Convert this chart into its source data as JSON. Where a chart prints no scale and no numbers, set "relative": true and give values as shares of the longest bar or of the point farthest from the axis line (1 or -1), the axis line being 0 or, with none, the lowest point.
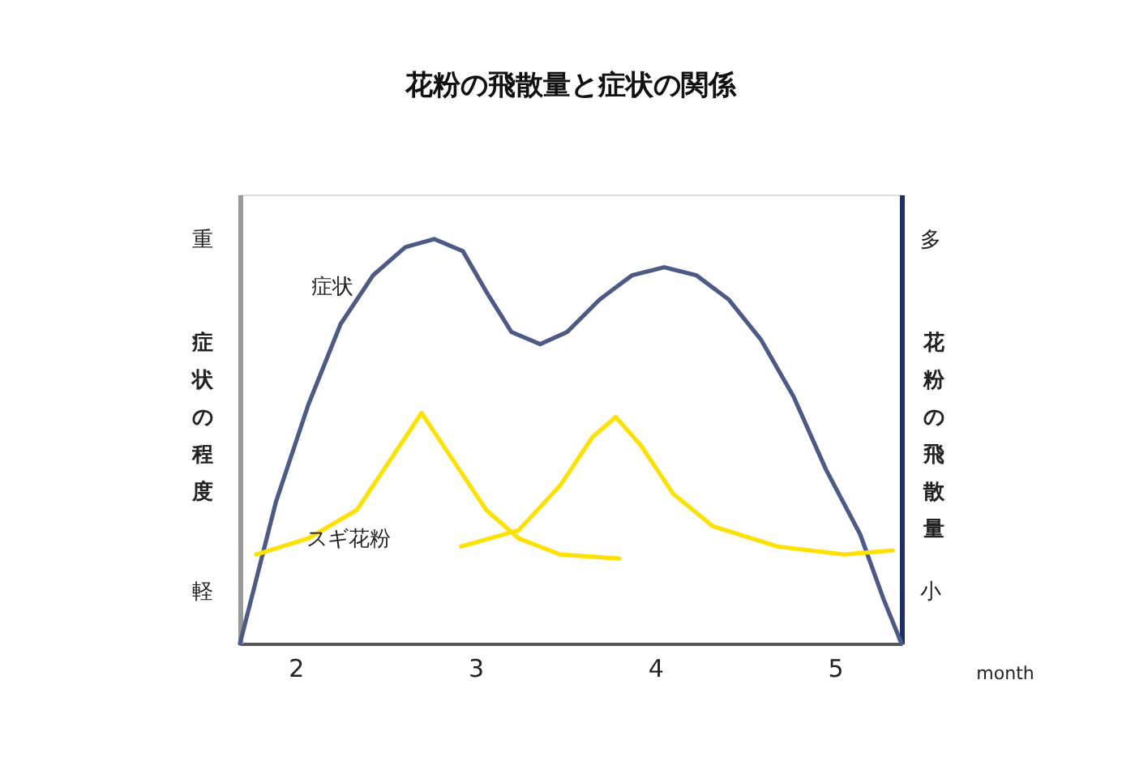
{
  "chart_data": {
    "type": "line",
    "title": "花粉の飛散量と症状の関係",
    "xlabel": "month",
    "ylabel": "症状の程度",
    "y2label": "花粉の飛散量",
    "relative": true,
    "xlim": [
      1.69,
      5.37
    ],
    "xticks": [
      2,
      3,
      4,
      5
    ],
    "grid": false,
    "legend": false,
    "marker": "none",
    "line_style": "solid",
    "annotations": [
      "重",
      "軽",
      "多",
      "小"
    ],
    "series": [
      {
        "name": "症状",
        "color": "#4b5a86",
        "x": [
          1.69,
          1.89,
          2.07,
          2.25,
          2.43,
          2.61,
          2.77,
          2.93,
          3.06,
          3.2,
          3.36,
          3.51,
          3.69,
          3.87,
          4.05,
          4.23,
          4.41,
          4.59,
          4.77,
          4.95,
          5.14,
          5.27,
          5.37
        ],
        "values": [
          0,
          0.35,
          0.59,
          0.79,
          0.91,
          0.98,
          1.0,
          0.97,
          0.87,
          0.77,
          0.74,
          0.77,
          0.85,
          0.91,
          0.93,
          0.91,
          0.85,
          0.75,
          0.61,
          0.43,
          0.27,
          0.11,
          0
        ]
      },
      {
        "name": "スギ花粉",
        "color": "#ffe100",
        "axis": "y2",
        "x": [
          1.78,
          2.07,
          2.34,
          2.52,
          2.7,
          2.88,
          3.06,
          3.24,
          3.47,
          3.8
        ],
        "values": [
          0.22,
          0.26,
          0.33,
          0.45,
          0.57,
          0.45,
          0.33,
          0.26,
          0.22,
          0.21
        ]
      },
      {
        "color": "#ffe100",
        "axis": "y2",
        "x": [
          2.92,
          3.24,
          3.47,
          3.65,
          3.78,
          3.92,
          4.1,
          4.32,
          4.68,
          5.05,
          5.32
        ],
        "values": [
          0.24,
          0.28,
          0.39,
          0.51,
          0.56,
          0.49,
          0.37,
          0.29,
          0.24,
          0.22,
          0.23
        ]
      }
    ]
  }
}
